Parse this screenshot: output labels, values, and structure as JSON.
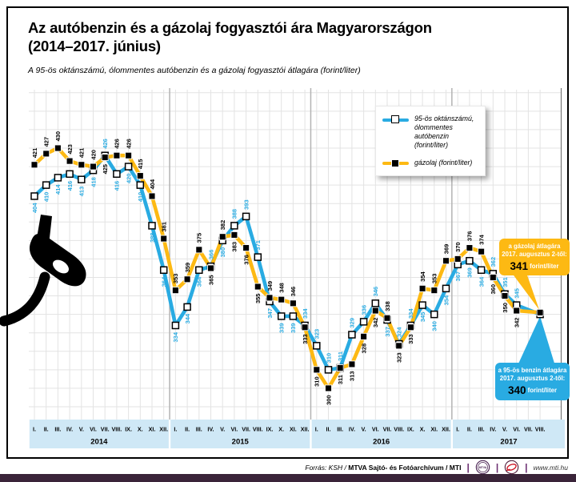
{
  "header": {
    "title_line1": "Az autóbenzin és a gázolaj fogyasztói ára Magyarországon",
    "title_line2": "(2014–2017. június)",
    "subtitle": "A 95-ös oktánszámú, ólommentes autóbenzin és a gázolaj fogyasztói átlagára (forint/liter)"
  },
  "legend": {
    "petrol_lines": [
      "95-ös oktánszámú,",
      "ólommentes autóbenzin",
      "(forint/liter)"
    ],
    "diesel_label": "gázolaj (forint/liter)"
  },
  "chart_data": {
    "type": "line",
    "title": "Az autóbenzin és a gázolaj fogyasztói ára Magyarországon (2014–2017. június)",
    "unit": "forint/liter",
    "ylim": [
      285,
      462
    ],
    "grid_ymin": 290,
    "grid_ymax": 460,
    "grid_step": 10,
    "grid": true,
    "x_years": [
      {
        "year": "2014",
        "months": [
          "I.",
          "II.",
          "III.",
          "IV.",
          "V.",
          "VI.",
          "VII.",
          "VIII.",
          "IX.",
          "X.",
          "XI.",
          "XII."
        ]
      },
      {
        "year": "2015",
        "months": [
          "I.",
          "II.",
          "III.",
          "IV.",
          "V.",
          "VI.",
          "VII.",
          "VIII.",
          "IX.",
          "X.",
          "XI.",
          "XII."
        ]
      },
      {
        "year": "2016",
        "months": [
          "I.",
          "II.",
          "III.",
          "IV.",
          "V.",
          "VI.",
          "VII.",
          "VIII.",
          "IX.",
          "X.",
          "XI.",
          "XII."
        ]
      },
      {
        "year": "2017",
        "months": [
          "I.",
          "II.",
          "III.",
          "IV.",
          "V.",
          "VI.",
          "VII.",
          "VIII."
        ]
      }
    ],
    "series": [
      {
        "name": "95-ös oktánszámú, ólommentes autóbenzin (forint/liter)",
        "color": "#29abe2",
        "marker": "white-square",
        "values": [
          404,
          410,
          414,
          416,
          413,
          418,
          426,
          416,
          420,
          410,
          388,
          364,
          334,
          344,
          364,
          366,
          380,
          388,
          393,
          371,
          347,
          339,
          339,
          334,
          323,
          310,
          311,
          329,
          336,
          346,
          337,
          324,
          334,
          345,
          340,
          354,
          367,
          369,
          364,
          362,
          351,
          345,
          null,
          340
        ]
      },
      {
        "name": "gázolaj (forint/liter)",
        "color": "#fdb913",
        "marker": "black-square",
        "values": [
          421,
          427,
          430,
          423,
          421,
          420,
          425,
          426,
          426,
          415,
          404,
          381,
          353,
          359,
          375,
          365,
          382,
          383,
          376,
          355,
          349,
          348,
          346,
          333,
          310,
          300,
          311,
          313,
          328,
          342,
          338,
          323,
          333,
          354,
          353,
          369,
          370,
          376,
          374,
          360,
          350,
          342,
          null,
          341
        ]
      }
    ],
    "callout_point_index": 43
  },
  "callouts": {
    "diesel": {
      "line1": "a gázolaj átlagára",
      "line2": "2017. augusztus 2-től:",
      "value": "341",
      "unit": "forint/liter",
      "color": "#fdb913"
    },
    "petrol": {
      "line1": "a 95-ös benzin átlagára",
      "line2": "2017. augusztus 2-től:",
      "value": "340",
      "unit": "forint/liter",
      "color": "#29abe2"
    }
  },
  "footer": {
    "source_italic": "Forrás: KSH / ",
    "source_bold": "MTVA Sajtó- és Fotóarchívum / MTI",
    "logo1": "mtva-logo",
    "logo2": "mti-logo",
    "website": "www.mti.hu"
  }
}
